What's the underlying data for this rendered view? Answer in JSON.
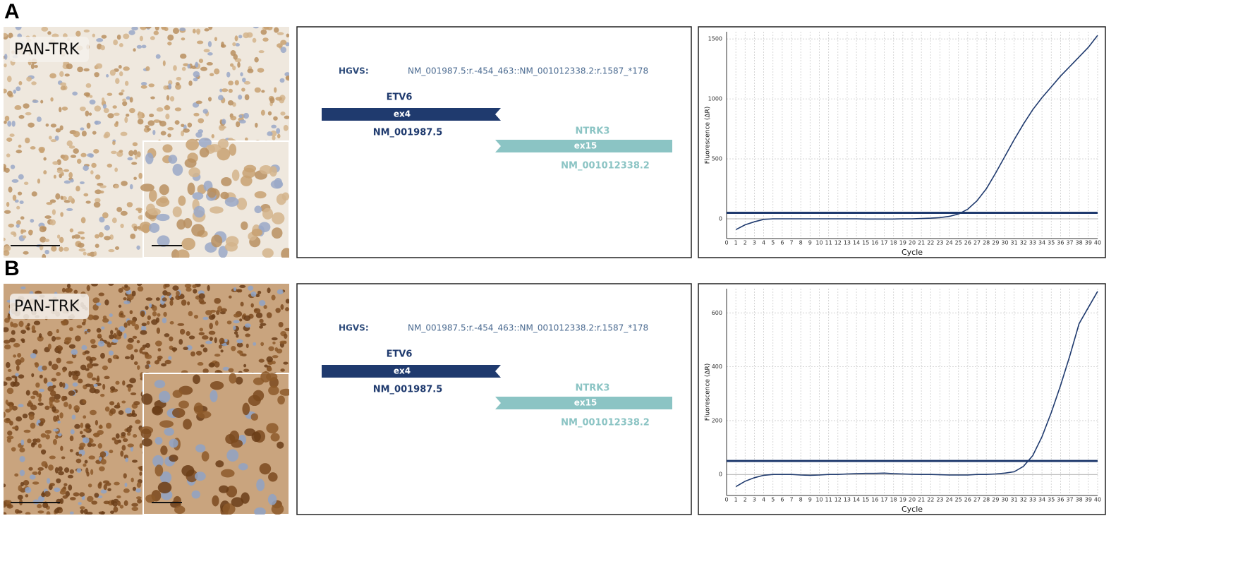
{
  "panels": [
    {
      "label": "A",
      "ihc_label": "PAN-TRK",
      "fusion": {
        "hgvs_label": "HGVS:",
        "hgvs": "NM_001987.5:r.-454_463::NM_001012338.2:r.1587_*178",
        "gene5": {
          "name": "ETV6",
          "exon": "ex4",
          "transcript": "NM_001987.5"
        },
        "gene3": {
          "name": "NTRK3",
          "exon": "ex15",
          "transcript": "NM_001012338.2"
        }
      }
    },
    {
      "label": "B",
      "ihc_label": "PAN-TRK",
      "fusion": {
        "hgvs_label": "HGVS:",
        "hgvs": "NM_001987.5:r.-454_463::NM_001012338.2:r.1587_*178",
        "gene5": {
          "name": "ETV6",
          "exon": "ex4",
          "transcript": "NM_001987.5"
        },
        "gene3": {
          "name": "NTRK3",
          "exon": "ex15",
          "transcript": "NM_001012338.2"
        }
      }
    }
  ],
  "chart_data": [
    {
      "type": "line",
      "xlabel": "Cycle",
      "ylabel": "Fluorescence (ΔR)",
      "x": [
        1,
        2,
        3,
        4,
        5,
        6,
        7,
        8,
        9,
        10,
        11,
        12,
        13,
        14,
        15,
        16,
        17,
        18,
        19,
        20,
        21,
        22,
        23,
        24,
        25,
        26,
        27,
        28,
        29,
        30,
        31,
        32,
        33,
        34,
        35,
        36,
        37,
        38,
        39,
        40
      ],
      "series": [
        {
          "color": "#1f3a6e",
          "values": [
            -90,
            -50,
            -25,
            -5,
            0,
            0,
            0,
            0,
            0,
            0,
            0,
            0,
            0,
            0,
            -2,
            -2,
            -2,
            -2,
            0,
            0,
            2,
            5,
            10,
            20,
            40,
            80,
            150,
            250,
            380,
            520,
            660,
            790,
            910,
            1010,
            1100,
            1190,
            1270,
            1350,
            1430,
            1530
          ]
        }
      ],
      "threshold": 50,
      "threshold_color": "#1f3a6e",
      "xlim": [
        0,
        40
      ],
      "xticks": [
        0,
        1,
        2,
        3,
        4,
        5,
        6,
        7,
        8,
        9,
        10,
        11,
        12,
        13,
        14,
        15,
        16,
        17,
        18,
        19,
        20,
        21,
        22,
        23,
        24,
        25,
        26,
        27,
        28,
        29,
        30,
        31,
        32,
        33,
        34,
        35,
        36,
        37,
        38,
        39,
        40
      ],
      "ylim": [
        -165,
        1560
      ],
      "yticks": [
        0,
        500,
        1000,
        1500
      ],
      "grid": true
    },
    {
      "type": "line",
      "xlabel": "Cycle",
      "ylabel": "Fluorescence (ΔR)",
      "x": [
        1,
        2,
        3,
        4,
        5,
        6,
        7,
        8,
        9,
        10,
        11,
        12,
        13,
        14,
        15,
        16,
        17,
        18,
        19,
        20,
        21,
        22,
        23,
        24,
        25,
        26,
        27,
        28,
        29,
        30,
        31,
        32,
        33,
        34,
        35,
        36,
        37,
        38,
        39,
        40
      ],
      "series": [
        {
          "color": "#1f3a6e",
          "values": [
            -45,
            -25,
            -12,
            -3,
            0,
            0,
            0,
            -2,
            -3,
            -2,
            0,
            0,
            2,
            3,
            4,
            4,
            5,
            3,
            2,
            1,
            0,
            0,
            -1,
            -2,
            -2,
            -2,
            0,
            0,
            2,
            5,
            10,
            30,
            70,
            140,
            230,
            330,
            440,
            560,
            620,
            680
          ]
        }
      ],
      "threshold": 50,
      "threshold_color": "#1f3a6e",
      "xlim": [
        0,
        40
      ],
      "xticks": [
        0,
        1,
        2,
        3,
        4,
        5,
        6,
        7,
        8,
        9,
        10,
        11,
        12,
        13,
        14,
        15,
        16,
        17,
        18,
        19,
        20,
        21,
        22,
        23,
        24,
        25,
        26,
        27,
        28,
        29,
        30,
        31,
        32,
        33,
        34,
        35,
        36,
        37,
        38,
        39,
        40
      ],
      "ylim": [
        -78,
        690
      ],
      "yticks": [
        0,
        200,
        400,
        600
      ],
      "grid": true
    }
  ]
}
